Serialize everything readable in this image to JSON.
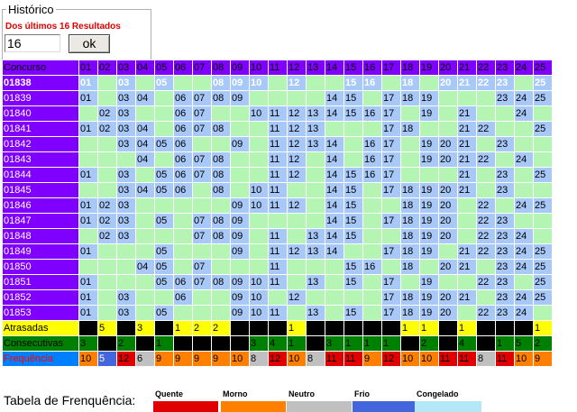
{
  "historico": {
    "legend": "Histórico",
    "subtitle": "Dos últimos 16 Resultados",
    "input_value": "16",
    "ok_label": "ok"
  },
  "table": {
    "header_label": "Concurso",
    "columns": [
      "01",
      "02",
      "03",
      "04",
      "05",
      "06",
      "07",
      "08",
      "09",
      "10",
      "11",
      "12",
      "13",
      "14",
      "15",
      "16",
      "17",
      "18",
      "19",
      "20",
      "21",
      "22",
      "23",
      "24",
      "25"
    ],
    "rows": [
      {
        "contest": "01838",
        "nums": [
          1,
          3,
          5,
          8,
          9,
          10,
          12,
          15,
          16,
          18,
          20,
          21,
          22,
          23,
          25
        ]
      },
      {
        "contest": "01839",
        "nums": [
          1,
          3,
          4,
          6,
          7,
          8,
          9,
          14,
          15,
          17,
          18,
          19,
          23,
          24,
          25
        ]
      },
      {
        "contest": "01840",
        "nums": [
          2,
          3,
          6,
          7,
          10,
          11,
          12,
          13,
          14,
          15,
          16,
          17,
          19,
          21,
          24
        ]
      },
      {
        "contest": "01841",
        "nums": [
          1,
          2,
          3,
          4,
          6,
          7,
          8,
          11,
          12,
          13,
          17,
          18,
          21,
          22,
          25
        ]
      },
      {
        "contest": "01842",
        "nums": [
          3,
          4,
          5,
          6,
          9,
          11,
          12,
          13,
          14,
          16,
          17,
          19,
          20,
          21,
          23
        ]
      },
      {
        "contest": "01843",
        "nums": [
          4,
          6,
          7,
          8,
          11,
          12,
          14,
          16,
          17,
          19,
          20,
          21,
          22,
          24
        ]
      },
      {
        "contest": "01844",
        "nums": [
          1,
          3,
          5,
          6,
          7,
          8,
          11,
          12,
          14,
          15,
          16,
          17,
          21,
          23,
          25
        ]
      },
      {
        "contest": "01845",
        "nums": [
          3,
          4,
          5,
          6,
          8,
          10,
          11,
          14,
          15,
          17,
          18,
          19,
          20,
          21,
          23
        ]
      },
      {
        "contest": "01846",
        "nums": [
          1,
          2,
          3,
          9,
          10,
          11,
          12,
          14,
          15,
          18,
          19,
          20,
          22,
          24,
          25
        ]
      },
      {
        "contest": "01847",
        "nums": [
          1,
          2,
          3,
          5,
          7,
          8,
          9,
          14,
          15,
          17,
          18,
          19,
          20,
          22,
          23
        ]
      },
      {
        "contest": "01848",
        "nums": [
          2,
          3,
          7,
          8,
          9,
          11,
          13,
          14,
          15,
          18,
          19,
          20,
          22,
          23,
          24
        ]
      },
      {
        "contest": "01849",
        "nums": [
          1,
          5,
          9,
          11,
          12,
          13,
          14,
          17,
          18,
          19,
          21,
          22,
          23,
          24,
          25
        ]
      },
      {
        "contest": "01850",
        "nums": [
          4,
          5,
          7,
          11,
          15,
          16,
          18,
          20,
          21,
          23,
          24,
          25
        ]
      },
      {
        "contest": "01851",
        "nums": [
          1,
          5,
          6,
          7,
          8,
          9,
          10,
          11,
          13,
          15,
          17,
          19,
          22,
          23,
          25
        ]
      },
      {
        "contest": "01852",
        "nums": [
          1,
          3,
          6,
          9,
          10,
          12,
          17,
          18,
          19,
          20,
          21,
          23,
          24,
          25
        ]
      },
      {
        "contest": "01853",
        "nums": [
          1,
          3,
          5,
          9,
          10,
          11,
          13,
          15,
          17,
          18,
          19,
          20,
          22,
          23,
          24
        ]
      }
    ],
    "atrasadas": {
      "label": "Atrasadas",
      "values": [
        "",
        "5",
        "",
        "3",
        "",
        "1",
        "2",
        "2",
        "",
        "",
        "",
        "1",
        "",
        "",
        "",
        "",
        "",
        "1",
        "1",
        "",
        "1",
        "",
        "",
        "",
        "1"
      ]
    },
    "consecutivas": {
      "label": "Consecutivas",
      "values": [
        "3",
        "",
        "2",
        "",
        "1",
        "",
        "",
        "",
        "",
        "3",
        "4",
        "1",
        "",
        "3",
        "1",
        "1",
        "1",
        "",
        "2",
        "",
        "4",
        "",
        "1",
        "5",
        "2"
      ]
    },
    "frequencia": {
      "label": "Frequência",
      "values": [
        "10",
        "5",
        "12",
        "6",
        "9",
        "9",
        "9",
        "9",
        "10",
        "8",
        "12",
        "10",
        "8",
        "11",
        "11",
        "9",
        "12",
        "10",
        "10",
        "11",
        "11",
        "8",
        "11",
        "10",
        "9"
      ],
      "classes": [
        "m",
        "f",
        "q",
        "n",
        "m",
        "m",
        "m",
        "m",
        "m",
        "n",
        "q",
        "m",
        "n",
        "q",
        "q",
        "m",
        "q",
        "m",
        "m",
        "q",
        "q",
        "n",
        "q",
        "m",
        "m"
      ]
    }
  },
  "legend": {
    "title": "Tabela de Frenquência:",
    "items": [
      {
        "label": "Quente",
        "color": "#e00000"
      },
      {
        "label": "Morno",
        "color": "#ff8000"
      },
      {
        "label": "Neutro",
        "color": "#c0c0c0"
      },
      {
        "label": "Frio",
        "color": "#4466dd"
      },
      {
        "label": "Congelado",
        "color": "#b4e8f8"
      }
    ]
  }
}
